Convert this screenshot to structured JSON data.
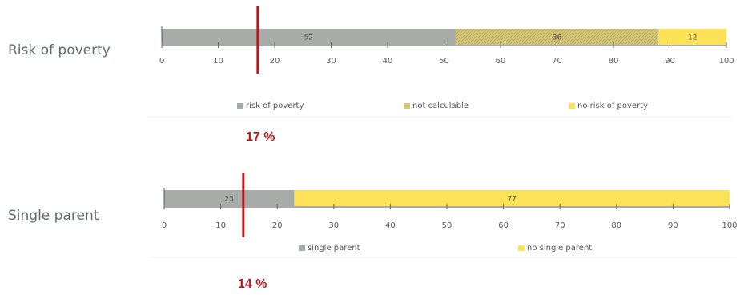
{
  "chart_data": [
    {
      "type": "bar",
      "stacked": true,
      "orientation": "horizontal",
      "row_label": "Risk of poverty",
      "xlim": [
        0,
        100
      ],
      "xticks": [
        "0",
        "10",
        "20",
        "30",
        "40",
        "50",
        "60",
        "70",
        "80",
        "90",
        "100"
      ],
      "series": [
        {
          "name": "risk of poverty",
          "value": 52,
          "label": "52",
          "color": "#a8aca9"
        },
        {
          "name": "not calculable",
          "value": 36,
          "label": "36",
          "color": "#d4c67a"
        },
        {
          "name": "no risk of poverty",
          "value": 12,
          "label": "12",
          "color": "#fce256"
        }
      ],
      "marker": {
        "value": 17,
        "label": "17 %",
        "color": "#c0161b"
      }
    },
    {
      "type": "bar",
      "stacked": true,
      "orientation": "horizontal",
      "row_label": "Single parent",
      "xlim": [
        0,
        100
      ],
      "xticks": [
        "0",
        "10",
        "20",
        "30",
        "40",
        "50",
        "60",
        "70",
        "80",
        "90",
        "100"
      ],
      "series": [
        {
          "name": "single parent",
          "value": 23,
          "label": "23",
          "color": "#a8aca9"
        },
        {
          "name": "no single parent",
          "value": 77,
          "label": "77",
          "color": "#fce256"
        }
      ],
      "marker": {
        "value": 14,
        "label": "14 %",
        "color": "#c0161b"
      }
    }
  ]
}
